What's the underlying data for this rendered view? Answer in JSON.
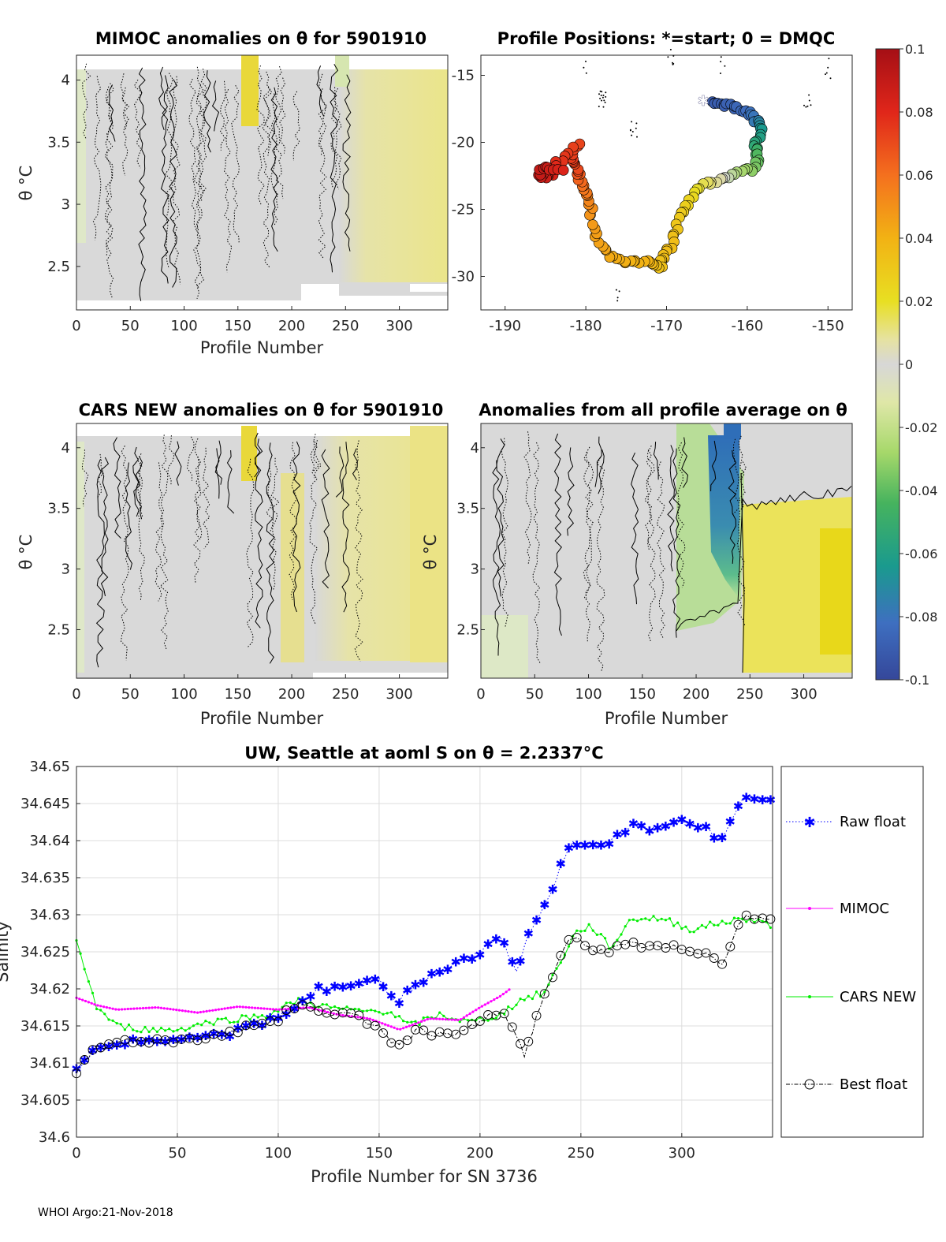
{
  "footer": "WHOI Argo:21-Nov-2018",
  "colorbar": {
    "ticks": [
      "0.1",
      "0.08",
      "0.06",
      "0.04",
      "0.02",
      "0",
      "-0.02",
      "-0.04",
      "-0.06",
      "-0.08",
      "-0.1"
    ]
  },
  "chart_data": [
    {
      "type": "heatmap",
      "title": "MIMOC anomalies on θ  for 5901910",
      "xlabel": "Profile Number",
      "ylabel": "θ °C",
      "xlim": [
        0,
        345
      ],
      "ylim": [
        2.15,
        4.2
      ],
      "xticks": [
        "0",
        "50",
        "100",
        "150",
        "200",
        "250",
        "300"
      ],
      "yticks": [
        "2.5",
        "3",
        "3.5",
        "4"
      ]
    },
    {
      "type": "scatter",
      "title": "Profile Positions: *=start; 0 = DMQC",
      "xlim": [
        -193,
        -147
      ],
      "ylim": [
        -32.5,
        -13.5
      ],
      "xticks": [
        "-190",
        "-180",
        "-170",
        "-160",
        "-150"
      ],
      "yticks": [
        "-15",
        "-20",
        "-25",
        "-30"
      ]
    },
    {
      "type": "heatmap",
      "title": "CARS NEW anomalies on θ for 5901910",
      "xlabel": "Profile Number",
      "ylabel": "θ °C",
      "xlim": [
        0,
        345
      ],
      "ylim": [
        2.1,
        4.2
      ],
      "xticks": [
        "0",
        "50",
        "100",
        "150",
        "200",
        "250",
        "300"
      ],
      "yticks": [
        "2.5",
        "3",
        "3.5",
        "4"
      ]
    },
    {
      "type": "heatmap",
      "title": "Anomalies from all profile average on θ",
      "xlabel": "Profile Number",
      "ylabel": "θ °C",
      "xlim": [
        0,
        345
      ],
      "ylim": [
        2.1,
        4.2
      ],
      "xticks": [
        "0",
        "50",
        "100",
        "150",
        "200",
        "250",
        "300"
      ],
      "yticks": [
        "2.5",
        "3",
        "3.5",
        "4"
      ]
    },
    {
      "type": "line",
      "title": "UW, Seattle at aoml S on θ = 2.2337°C",
      "xlabel": "Profile Number for SN 3736",
      "ylabel": "Salinity",
      "xlim": [
        0,
        345
      ],
      "ylim": [
        34.6,
        34.65
      ],
      "xticks": [
        "0",
        "50",
        "100",
        "150",
        "200",
        "250",
        "300"
      ],
      "yticks": [
        "34.6",
        "34.605",
        "34.61",
        "34.615",
        "34.62",
        "34.625",
        "34.63",
        "34.635",
        "34.64",
        "34.645",
        "34.65"
      ],
      "legend": [
        "Raw float",
        "MIMOC",
        "CARS NEW",
        "Best float"
      ],
      "series": [
        {
          "name": "Raw float",
          "color": "#0000ff",
          "x": [
            0,
            10,
            25,
            50,
            75,
            100,
            110,
            120,
            135,
            150,
            158,
            170,
            185,
            200,
            210,
            218,
            225,
            232,
            245,
            260,
            275,
            290,
            300,
            310,
            320,
            330,
            345
          ],
          "values": [
            34.609,
            34.612,
            34.613,
            34.613,
            34.614,
            34.616,
            34.618,
            34.62,
            34.6205,
            34.621,
            34.618,
            34.621,
            34.623,
            34.625,
            34.627,
            34.622,
            34.628,
            34.631,
            34.64,
            34.639,
            34.642,
            34.6415,
            34.6425,
            34.642,
            34.64,
            34.6455,
            34.646
          ]
        },
        {
          "name": "MIMOC",
          "color": "#ff00ff",
          "x": [
            0,
            10,
            20,
            40,
            60,
            80,
            100,
            115,
            130,
            145,
            160,
            175,
            190,
            200,
            210,
            215
          ],
          "values": [
            34.6188,
            34.6178,
            34.6172,
            34.6175,
            34.6168,
            34.6176,
            34.6172,
            34.6175,
            34.6165,
            34.616,
            34.6145,
            34.616,
            34.6158,
            34.6175,
            34.619,
            34.62
          ]
        },
        {
          "name": "CARS NEW",
          "color": "#00ee00",
          "x": [
            0,
            5,
            10,
            20,
            35,
            50,
            65,
            80,
            95,
            110,
            125,
            140,
            155,
            165,
            180,
            195,
            210,
            220,
            232,
            247,
            255,
            265,
            275,
            290,
            305,
            320,
            335,
            345
          ],
          "values": [
            34.6265,
            34.622,
            34.6175,
            34.615,
            34.6145,
            34.6145,
            34.6155,
            34.616,
            34.6165,
            34.6185,
            34.6175,
            34.617,
            34.617,
            34.615,
            34.6165,
            34.6155,
            34.6165,
            34.6185,
            34.6195,
            34.6275,
            34.6285,
            34.6255,
            34.6295,
            34.6295,
            34.628,
            34.629,
            34.6295,
            34.6285
          ]
        },
        {
          "name": "Best float",
          "color": "#000000",
          "x": [
            0,
            10,
            25,
            50,
            75,
            100,
            110,
            120,
            135,
            150,
            158,
            170,
            185,
            200,
            210,
            218,
            222,
            232,
            245,
            260,
            275,
            290,
            300,
            310,
            320,
            330,
            345
          ],
          "values": [
            34.609,
            34.612,
            34.613,
            34.613,
            34.614,
            34.616,
            34.618,
            34.617,
            34.6165,
            34.615,
            34.6125,
            34.6145,
            34.6135,
            34.6155,
            34.617,
            34.614,
            34.611,
            34.6195,
            34.627,
            34.625,
            34.626,
            34.6255,
            34.6255,
            34.625,
            34.6235,
            34.6295,
            34.6295
          ]
        }
      ]
    }
  ]
}
